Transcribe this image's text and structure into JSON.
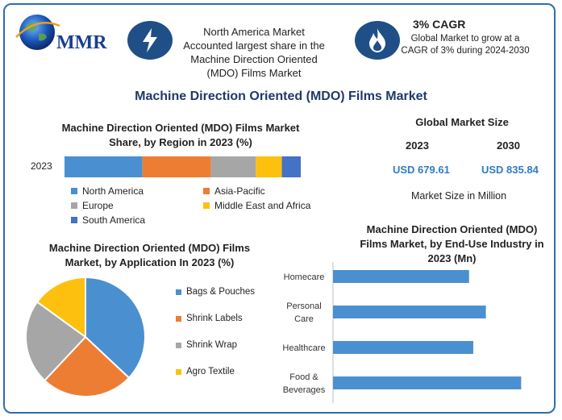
{
  "logo": {
    "text": "MMR"
  },
  "info_left": {
    "text": "North America Market Accounted largest share in the Machine Direction Oriented (MDO) Films Market"
  },
  "info_right": {
    "title": "3% CAGR",
    "text": "Global Market to grow at a CAGR of 3% during 2024-2030"
  },
  "main_title": "Machine Direction Oriented (MDO) Films Market",
  "region_chart": {
    "title": "Machine Direction Oriented (MDO) Films Market Share, by Region in 2023 (%)"
  },
  "market_size": {
    "title": "Global Market Size",
    "year1": "2023",
    "year2": "2030",
    "value1": "USD 679.61",
    "value2": "USD 835.84",
    "unit_note": "Market Size in Million"
  },
  "application_chart": {
    "title": "Machine Direction Oriented (MDO) Films Market, by Application In 2023 (%)"
  },
  "enduse_chart": {
    "title": "Machine Direction Oriented (MDO) Films Market, by End-Use Industry in 2023 (Mn)"
  },
  "colors": {
    "north_america": "#4a90d0",
    "asia_pacific": "#ee7d34",
    "europe": "#a6a6a6",
    "mea": "#fec00f",
    "south_america": "#4472c4",
    "bar": "#4a90d0",
    "accent": "#1f4f86",
    "frame": "#2f6db0"
  },
  "chart_data": [
    {
      "type": "bar",
      "orientation": "horizontal-stacked",
      "title": "Machine Direction Oriented (MDO) Films Market Share, by Region in 2023 (%)",
      "categories": [
        "2023"
      ],
      "series": [
        {
          "name": "North America",
          "values": [
            33
          ]
        },
        {
          "name": "Asia-Pacific",
          "values": [
            29
          ]
        },
        {
          "name": "Europe",
          "values": [
            19
          ]
        },
        {
          "name": "Middle East and Africa",
          "values": [
            11
          ]
        },
        {
          "name": "South America",
          "values": [
            8
          ]
        }
      ],
      "xlim": [
        0,
        100
      ],
      "legend": "bottom"
    },
    {
      "type": "pie",
      "title": "Machine Direction Oriented (MDO) Films Market, by Application In 2023 (%)",
      "labels": [
        "Bags & Pouches",
        "Shrink Labels",
        "Shrink Wrap",
        "Agro Textile"
      ],
      "values": [
        37,
        25,
        23,
        15
      ],
      "legend": "right"
    },
    {
      "type": "bar",
      "orientation": "horizontal",
      "title": "Machine Direction Oriented (MDO) Films Market, by End-Use Industry in 2023 (Mn)",
      "categories": [
        "Homecare",
        "Personal Care",
        "Healthcare",
        "Food & Beverages"
      ],
      "category_lines": [
        [
          "Homecare"
        ],
        [
          "Personal",
          "Care"
        ],
        [
          "Healthcare"
        ],
        [
          "Food &",
          "Beverages"
        ]
      ],
      "values": [
        162,
        182,
        167,
        224
      ],
      "xlim": [
        0,
        240
      ],
      "grid": false
    }
  ]
}
